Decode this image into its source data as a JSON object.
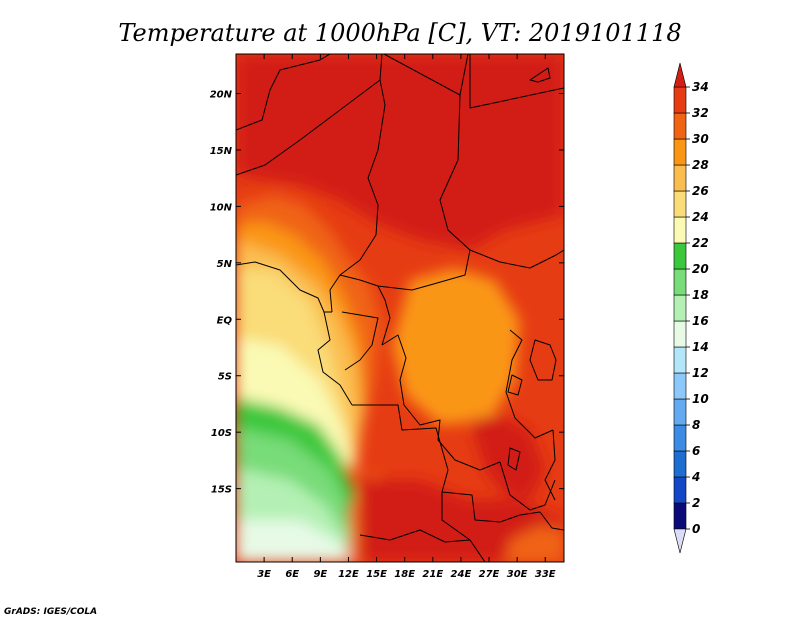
{
  "title": "Temperature at 1000hPa [C], VT: 2019101118",
  "credit": "GrADS: IGES/COLA",
  "map": {
    "lon_range": [
      0,
      35
    ],
    "lat_range": [
      -21.5,
      23.5
    ],
    "x_ticks": [
      {
        "value": 3,
        "label": "3E"
      },
      {
        "value": 6,
        "label": "6E"
      },
      {
        "value": 9,
        "label": "9E"
      },
      {
        "value": 12,
        "label": "12E"
      },
      {
        "value": 15,
        "label": "15E"
      },
      {
        "value": 18,
        "label": "18E"
      },
      {
        "value": 21,
        "label": "21E"
      },
      {
        "value": 24,
        "label": "24E"
      },
      {
        "value": 27,
        "label": "27E"
      },
      {
        "value": 30,
        "label": "30E"
      },
      {
        "value": 33,
        "label": "33E"
      }
    ],
    "y_ticks": [
      {
        "value": 20,
        "label": "20N"
      },
      {
        "value": 15,
        "label": "15N"
      },
      {
        "value": 10,
        "label": "10N"
      },
      {
        "value": 5,
        "label": "5N"
      },
      {
        "value": 0,
        "label": "EQ"
      },
      {
        "value": -5,
        "label": "5S"
      },
      {
        "value": -10,
        "label": "10S"
      },
      {
        "value": -15,
        "label": "15S"
      }
    ]
  },
  "colorbar": {
    "labels": [
      "0",
      "2",
      "4",
      "6",
      "8",
      "10",
      "12",
      "14",
      "16",
      "18",
      "20",
      "22",
      "24",
      "26",
      "28",
      "30",
      "32",
      "34"
    ],
    "colors": [
      "#0a0a78",
      "#1446c8",
      "#1e6ed2",
      "#3c8ce6",
      "#64aaf0",
      "#8cc8fa",
      "#b4e6fa",
      "#e6fae6",
      "#b4f0b4",
      "#78dc78",
      "#3cc83c",
      "#fafab4",
      "#fadc78",
      "#fabe50",
      "#fa9614",
      "#f06414",
      "#e63c14",
      "#d21e14"
    ],
    "under_color": "#dcdcf5",
    "over_color": "#d21e14"
  }
}
